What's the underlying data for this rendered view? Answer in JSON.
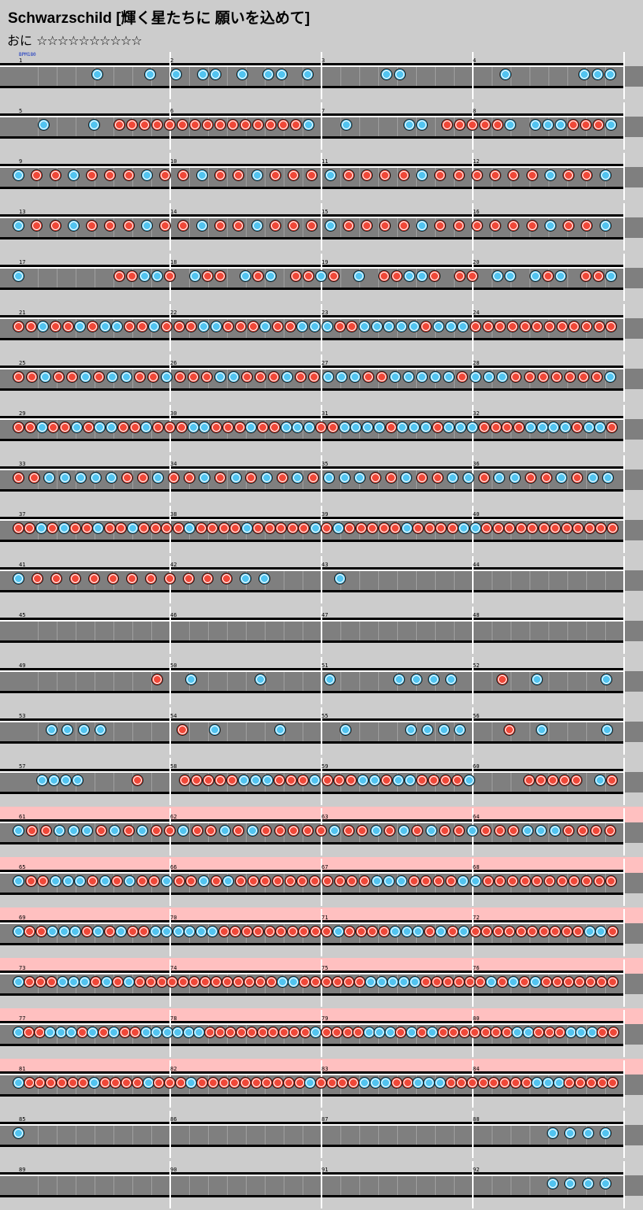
{
  "song": {
    "title": "Schwarzschild  [輝く星たちに 願いを込めて]"
  },
  "difficulty": {
    "label": "おに",
    "stars": "☆☆☆☆☆☆☆☆☆☆"
  },
  "bpm_label": "BPM180",
  "legend": {
    "don": "don-note",
    "ka": "ka-note"
  },
  "colors": {
    "don": "#f04838",
    "ka": "#52c4f0",
    "track": "#7f7f7f",
    "gogo": "#ffc0c0",
    "background": "#cccccc"
  },
  "rows": [
    {
      "bars": [
        1,
        2,
        3,
        4
      ],
      "gogo": false,
      "notes": "......k...k.k.kk.k.kk.k.....kk.......k.....kkk"
    },
    {
      "bars": [
        5,
        6,
        7,
        8
      ],
      "gogo": false,
      "notes": "..k...k.dddddddddddddddk..k....kk.dddddk.kkkdddk"
    },
    {
      "bars": [
        9,
        10,
        11,
        12
      ],
      "gogo": false,
      "notes": "kddkdddkddkddkdddkddddkddddddkddk"
    },
    {
      "bars": [
        13,
        14,
        15,
        16
      ],
      "gogo": false,
      "notes": "kddkdddkddkddkdddkddddkddddddkddk"
    },
    {
      "bars": [
        17,
        18,
        19,
        20
      ],
      "gogo": false,
      "notes": "k.......ddkkd.kdd.kdk.ddkd.k.ddkkd.dd.kk.kdk.ddk"
    },
    {
      "bars": [
        21,
        22,
        23,
        24
      ],
      "gogo": false,
      "notes": "ddkddkdkkddkdddkkdddkddkkkddkkkkkdkkkdddddddddddd"
    },
    {
      "bars": [
        25,
        26,
        27,
        28
      ],
      "gogo": false,
      "notes": "ddkddkdkkddkdddkkdddkddkkkddkkkkkdkkkdddddddk"
    },
    {
      "bars": [
        29,
        30,
        31,
        32
      ],
      "gogo": false,
      "notes": "ddkddkdkkddkdddkkdddkddkkkddkkkkdkkkdkkkddddkkkkdkkd"
    },
    {
      "bars": [
        33,
        34,
        35,
        36
      ],
      "gogo": false,
      "notes": "ddkkkkkddkddkdkdkdkdkkkddkddkkdkkddkdkk"
    },
    {
      "bars": [
        37,
        38,
        39,
        40
      ],
      "gogo": false,
      "notes": "ddkdkddkddkddddkddddkdddddkdkdddddkddddkkdddddddddddd"
    },
    {
      "bars": [
        41,
        42,
        43,
        44
      ],
      "gogo": false,
      "notes": "kdddddddddddkk...k"
    },
    {
      "bars": [
        45,
        46,
        47,
        48
      ],
      "gogo": false,
      "notes": ""
    },
    {
      "bars": [
        49,
        50,
        51,
        52
      ],
      "gogo": false,
      "notes": "........d.k...k...k...kkkk..d.k...k"
    },
    {
      "bars": [
        53,
        54,
        55,
        56
      ],
      "gogo": false,
      "notes": "..kkkk....d.k...k...k...kkkk..d.k...k"
    },
    {
      "bars": [
        57,
        58,
        59,
        60
      ],
      "gogo": false,
      "notes": "..kkkk....d...dddddkkkdddkdddkkdkkddddk....ddddd.kd"
    },
    {
      "bars": [
        61,
        62,
        63,
        64
      ],
      "gogo": true,
      "notes": "kddkkkdkdkddkddkdkdddddkddkdkdkddkdddkkkdddd"
    },
    {
      "bars": [
        65,
        66,
        67,
        68
      ],
      "gogo": true,
      "notes": "kddkkkdkdkddkddkdkdddddddddddkkkddddkkddddddddddd"
    },
    {
      "bars": [
        69,
        70,
        71,
        72
      ],
      "gogo": true,
      "notes": "kddkkkdkdkddkkkkkkddddddddddkddddkkkdkdkddddddddddkkd"
    },
    {
      "bars": [
        73,
        74,
        75,
        76
      ],
      "gogo": true,
      "notes": "kdddkkkdkdkdddddddddddddkkddddddkkkkkddddddkdkdkddddddd"
    },
    {
      "bars": [
        77,
        78,
        79,
        80
      ],
      "gogo": true,
      "notes": "kddkkkdkdkddkkkkkkddddddddddkddddkkkdkdkdddddddkkdddkkkdd"
    },
    {
      "bars": [
        81,
        82,
        83,
        84
      ],
      "gogo": true,
      "notes": "kddddddkddddkdddkddddddddddkddddkkkddkkkddddddddkkkddddd"
    },
    {
      "bars": [
        85,
        86,
        87,
        88
      ],
      "gogo": false,
      "notes": "k.............................kkkk"
    },
    {
      "bars": [
        89,
        90,
        91,
        92
      ],
      "gogo": false,
      "notes": "..............................kkkk"
    }
  ]
}
